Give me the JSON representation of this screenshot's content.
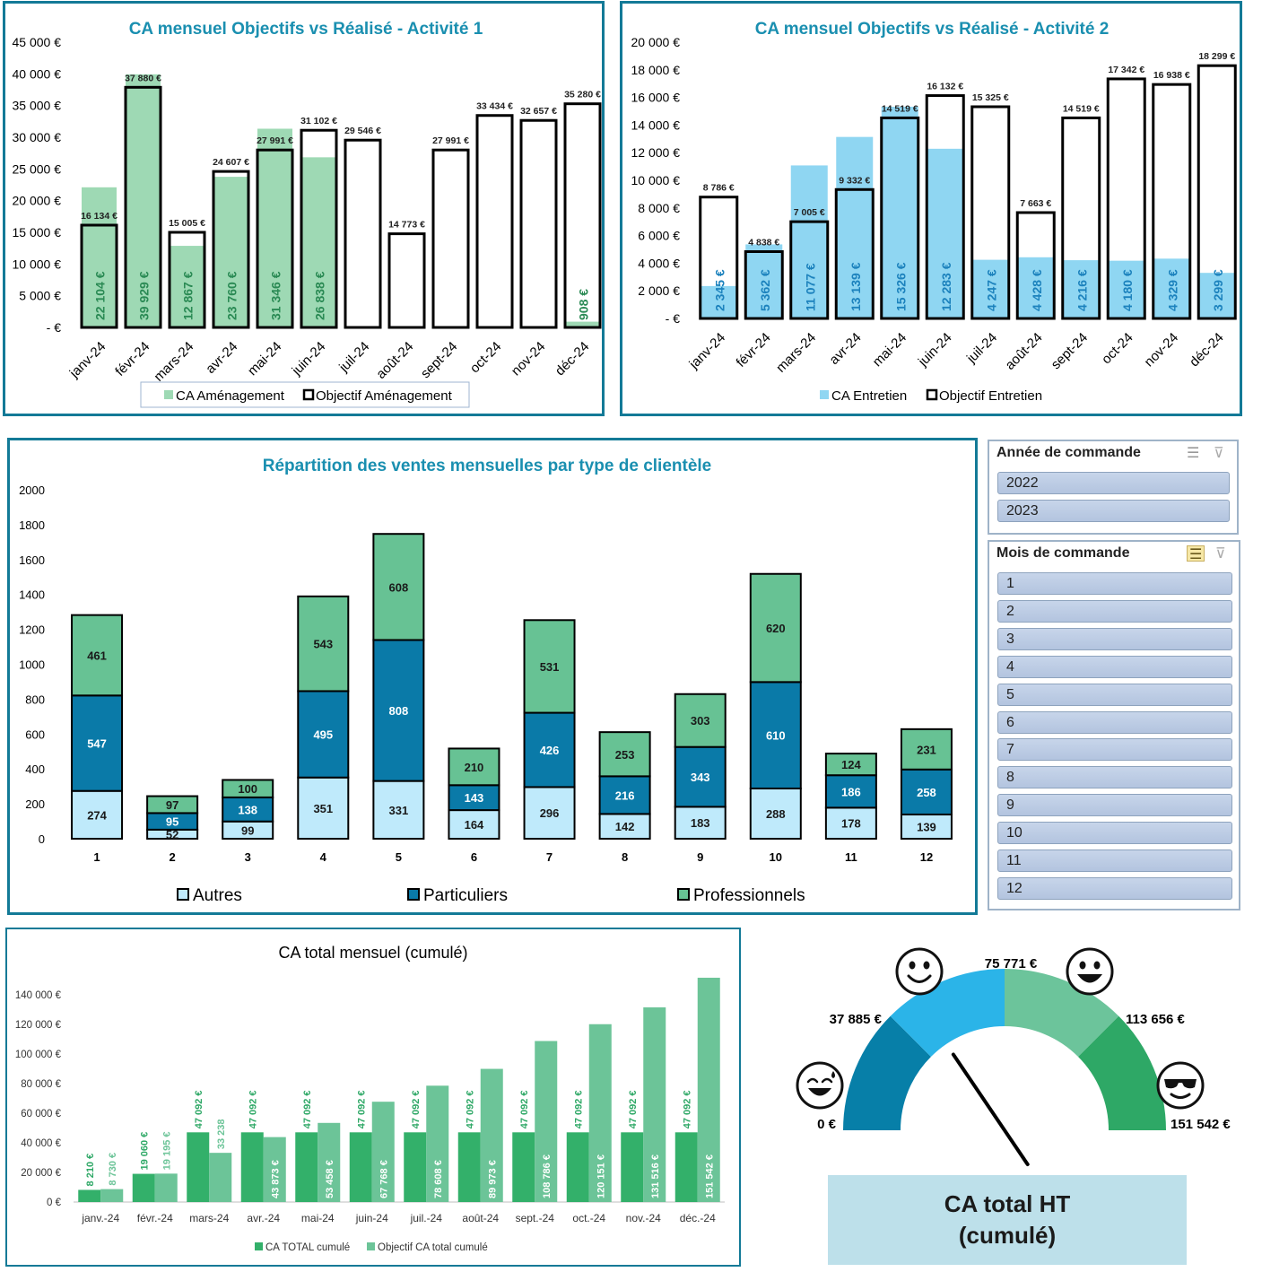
{
  "chart_data": [
    {
      "id": "activite1",
      "type": "bar",
      "title": "CA mensuel Objectifs vs Réalisé - Activité 1",
      "categories": [
        "janv-24",
        "févr-24",
        "mars-24",
        "avr-24",
        "mai-24",
        "juin-24",
        "juil-24",
        "août-24",
        "sept-24",
        "oct-24",
        "nov-24",
        "déc-24"
      ],
      "series": [
        {
          "name": "CA Aménagement",
          "values": [
            22104,
            39929,
            12867,
            23760,
            31346,
            26838,
            null,
            null,
            null,
            null,
            null,
            908
          ],
          "labels": [
            "22 104 €",
            "39 929 €",
            "12 867 €",
            "23 760 €",
            "31 346 €",
            "26 838 €",
            "",
            "",
            "",
            "",
            "",
            "908 €"
          ],
          "color": "#9ed9b4"
        },
        {
          "name": "Objectif Aménagement",
          "values": [
            16134,
            37880,
            15005,
            24607,
            27991,
            31102,
            29546,
            14773,
            27991,
            33434,
            32657,
            35280
          ],
          "labels": [
            "16 134 €",
            "37 880 €",
            "15 005 €",
            "24 607 €",
            "27 991 €",
            "31 102 €",
            "29 546 €",
            "14 773 €",
            "27 991 €",
            "33 434 €",
            "32 657 €",
            "35 280 €"
          ],
          "color": "#000000"
        }
      ],
      "yticks": [
        "- €",
        "5 000 €",
        "10 000 €",
        "15 000 €",
        "20 000 €",
        "25 000 €",
        "30 000 €",
        "35 000 €",
        "40 000 €",
        "45 000 €"
      ],
      "ylim": [
        0,
        45000
      ],
      "legend": "bottom"
    },
    {
      "id": "activite2",
      "type": "bar",
      "title": "CA mensuel Objectifs vs Réalisé - Activité 2",
      "categories": [
        "janv-24",
        "févr-24",
        "mars-24",
        "avr-24",
        "mai-24",
        "juin-24",
        "juil-24",
        "août-24",
        "sept-24",
        "oct-24",
        "nov-24",
        "déc-24"
      ],
      "series": [
        {
          "name": "CA Entretien",
          "values": [
            2345,
            5362,
            11077,
            13139,
            15326,
            12283,
            4247,
            4428,
            4216,
            4180,
            4329,
            3299
          ],
          "labels": [
            "2 345 €",
            "5 362 €",
            "11 077 €",
            "13 139 €",
            "15 326 €",
            "12 283 €",
            "4 247 €",
            "4 428 €",
            "4 216 €",
            "4 180 €",
            "4 329 €",
            "3 299 €"
          ],
          "color": "#8fd6f2"
        },
        {
          "name": "Objectif Entretien",
          "values": [
            8786,
            4838,
            7005,
            9332,
            14519,
            16132,
            15325,
            7663,
            14519,
            17342,
            16938,
            18299
          ],
          "labels": [
            "8 786 €",
            "4 838 €",
            "7 005 €",
            "9 332 €",
            "14 519 €",
            "16 132 €",
            "15 325 €",
            "7 663 €",
            "14 519 €",
            "17 342 €",
            "16 938 €",
            "18 299 €"
          ],
          "color": "#000000"
        }
      ],
      "yticks": [
        "- €",
        "2 000 €",
        "4 000 €",
        "6 000 €",
        "8 000 €",
        "10 000 €",
        "12 000 €",
        "14 000 €",
        "16 000 €",
        "18 000 €",
        "20 000 €"
      ],
      "ylim": [
        0,
        20000
      ],
      "legend": "bottom"
    },
    {
      "id": "clientele",
      "type": "bar",
      "stacked": true,
      "title": "Répartition des ventes mensuelles par type de clientèle",
      "categories": [
        "1",
        "2",
        "3",
        "4",
        "5",
        "6",
        "7",
        "8",
        "9",
        "10",
        "11",
        "12"
      ],
      "series": [
        {
          "name": "Autres",
          "values": [
            274,
            52,
            99,
            351,
            331,
            164,
            296,
            142,
            183,
            288,
            178,
            139
          ],
          "color": "#bfeafb"
        },
        {
          "name": "Particuliers",
          "values": [
            547,
            95,
            138,
            495,
            808,
            143,
            426,
            216,
            343,
            610,
            186,
            258
          ],
          "color": "#0a7aa8"
        },
        {
          "name": "Professionnels",
          "values": [
            461,
            97,
            100,
            543,
            608,
            210,
            531,
            253,
            303,
            620,
            124,
            231
          ],
          "color": "#67c294"
        }
      ],
      "yticks": [
        "0",
        "200",
        "400",
        "600",
        "800",
        "1000",
        "1200",
        "1400",
        "1600",
        "1800",
        "2000"
      ],
      "ylim": [
        0,
        2000
      ],
      "legend": "bottom"
    },
    {
      "id": "cumul",
      "type": "bar",
      "title": "CA total mensuel (cumulé)",
      "categories": [
        "janv.-24",
        "févr.-24",
        "mars-24",
        "avr.-24",
        "mai-24",
        "juin-24",
        "juil.-24",
        "août-24",
        "sept.-24",
        "oct.-24",
        "nov.-24",
        "déc.-24"
      ],
      "series": [
        {
          "name": "CA TOTAL cumulé",
          "values": [
            8210,
            19060,
            47092,
            47092,
            47092,
            47092,
            47092,
            47092,
            47092,
            47092,
            47092,
            47092
          ],
          "labels": [
            "8 210 €",
            "19 060 €",
            "47 092 €",
            "47 092 €",
            "47 092 €",
            "47 092 €",
            "47 092 €",
            "47 092 €",
            "47 092 €",
            "47 092 €",
            "47 092 €",
            "47 092 €"
          ],
          "color": "#33b06a"
        },
        {
          "name": "Objectif CA total cumulé",
          "values": [
            8730,
            19195,
            33238,
            43873,
            53458,
            67768,
            78608,
            89973,
            108786,
            120151,
            131516,
            151542
          ],
          "labels": [
            "8 730 €",
            "19 195 €",
            "33 238",
            "43 873 €",
            "53 458 €",
            "67 768 €",
            "78 608 €",
            "89 973 €",
            "108 786 €",
            "120 151 €",
            "131 516 €",
            "151 542 €"
          ],
          "color": "#6cc498"
        }
      ],
      "yticks": [
        "0 €",
        "20 000 €",
        "40 000 €",
        "60 000 €",
        "80 000 €",
        "100 000 €",
        "120 000 €",
        "140 000 €"
      ],
      "ylim": [
        0,
        150000
      ],
      "legend": "bottom"
    },
    {
      "id": "gauge",
      "type": "gauge",
      "title": "CA total HT (cumulé)",
      "min": 0,
      "max": 151542,
      "value": 47092,
      "band_labels": [
        "0 €",
        "37 885 €",
        "75 771 €",
        "113 656 €",
        "151 542 €"
      ],
      "band_colors": [
        "#077fa8",
        "#2bb4e8",
        "#6cc49b",
        "#2ea866"
      ],
      "icons": [
        "sweat-smile-icon",
        "smile-icon",
        "grin-icon",
        "sunglasses-icon"
      ]
    }
  ],
  "slicers": {
    "annee": {
      "title": "Année de commande",
      "items": [
        "2022",
        "2023"
      ]
    },
    "mois": {
      "title": "Mois de commande",
      "items": [
        "1",
        "2",
        "3",
        "4",
        "5",
        "6",
        "7",
        "8",
        "9",
        "10",
        "11",
        "12"
      ]
    }
  }
}
